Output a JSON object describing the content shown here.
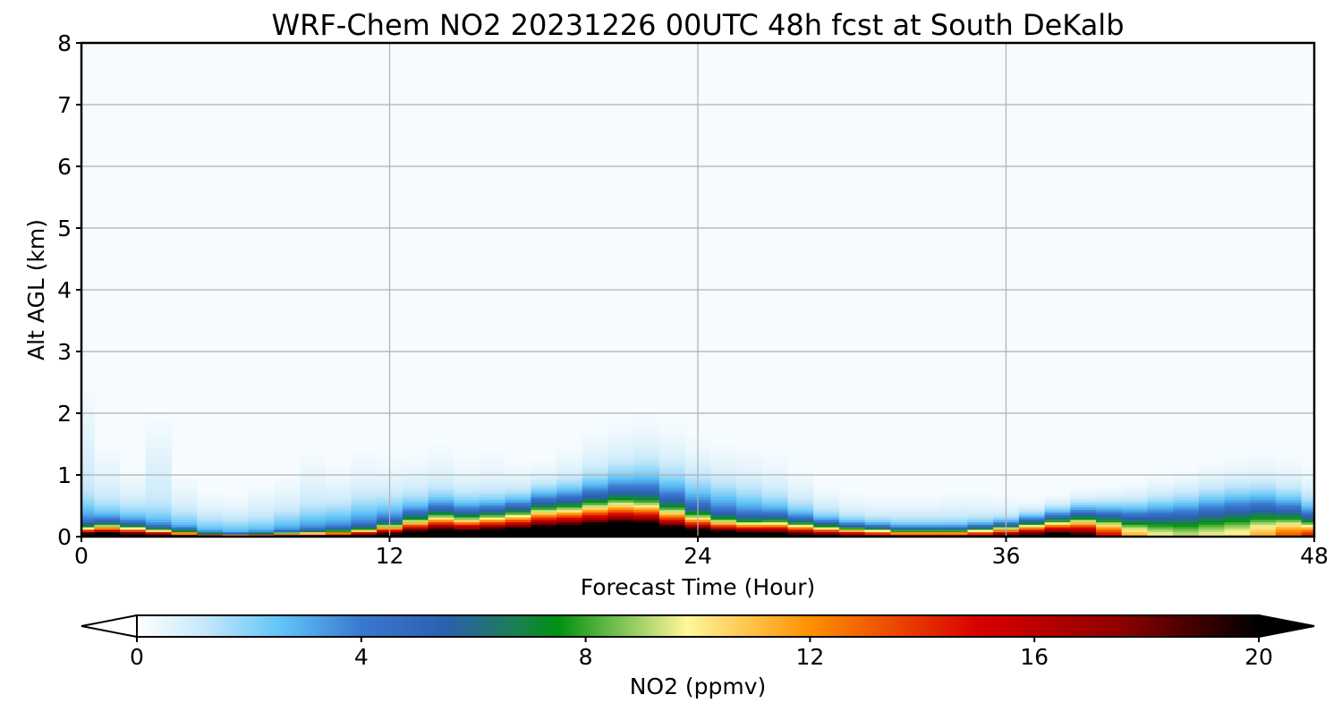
{
  "chart_data": {
    "type": "heatmap",
    "subtype": "time-height filled contour",
    "title": "WRF-Chem NO2  20231226 00UTC 48h fcst at South DeKalb",
    "xlabel": "Forecast Time (Hour)",
    "ylabel": "Alt AGL (km)",
    "xlim": [
      0,
      48
    ],
    "ylim": [
      0,
      8
    ],
    "xticks": [
      0,
      12,
      24,
      36,
      48
    ],
    "yticks": [
      0,
      1,
      2,
      3,
      4,
      5,
      6,
      7,
      8
    ],
    "grid": true,
    "colorbar": {
      "label": "NO2  (ppmv)",
      "min": 0,
      "max": 20,
      "ticks": [
        0,
        4,
        8,
        12,
        16,
        20
      ],
      "extend": "both",
      "orientation": "horizontal",
      "colors": [
        {
          "v": 0,
          "c": "#ffffff"
        },
        {
          "v": 1.2,
          "c": "#c6e8fa"
        },
        {
          "v": 2.6,
          "c": "#5ec3f7"
        },
        {
          "v": 4.0,
          "c": "#3a78d0"
        },
        {
          "v": 5.5,
          "c": "#2b5fb0"
        },
        {
          "v": 6.8,
          "c": "#1a8050"
        },
        {
          "v": 7.5,
          "c": "#009010"
        },
        {
          "v": 9.8,
          "c": "#fff79a"
        },
        {
          "v": 12.0,
          "c": "#ff9000"
        },
        {
          "v": 15.0,
          "c": "#d80000"
        },
        {
          "v": 17.5,
          "c": "#900000"
        },
        {
          "v": 20.0,
          "c": "#000000"
        }
      ]
    },
    "hours": [
      0,
      1,
      2,
      3,
      4,
      5,
      6,
      7,
      8,
      9,
      10,
      11,
      12,
      13,
      14,
      15,
      16,
      17,
      18,
      19,
      20,
      21,
      22,
      23,
      24,
      25,
      26,
      27,
      28,
      29,
      30,
      31,
      32,
      33,
      34,
      35,
      36,
      37,
      38,
      39,
      40,
      41,
      42,
      43,
      44,
      45,
      46,
      47,
      48
    ],
    "surface_no2": [
      20,
      20,
      19,
      18,
      16,
      14,
      13,
      13,
      14,
      15,
      16,
      17,
      18,
      19,
      19,
      19,
      20,
      20,
      20,
      20,
      20,
      20,
      20,
      19,
      19,
      19,
      19,
      18,
      17,
      17,
      16,
      15,
      14,
      14,
      14,
      15,
      17,
      18,
      19,
      17,
      12,
      8,
      6,
      5,
      5,
      5,
      6,
      8,
      10
    ],
    "boundary_layer_depth_km": [
      0.85,
      0.75,
      0.7,
      0.65,
      0.55,
      0.45,
      0.42,
      0.45,
      0.55,
      0.65,
      0.7,
      0.8,
      0.85,
      0.9,
      0.95,
      0.9,
      0.85,
      0.85,
      0.95,
      1.0,
      1.2,
      1.35,
      1.45,
      1.35,
      1.2,
      1.1,
      1.0,
      0.9,
      0.75,
      0.6,
      0.5,
      0.45,
      0.45,
      0.45,
      0.45,
      0.45,
      0.4,
      0.4,
      0.4,
      0.45,
      0.5,
      0.55,
      0.65,
      0.75,
      0.85,
      0.95,
      1.0,
      0.95,
      0.85
    ],
    "high_layer_depth_km": [
      0.12,
      0.15,
      0.13,
      0.1,
      0.08,
      0.05,
      0.04,
      0.05,
      0.06,
      0.07,
      0.08,
      0.1,
      0.15,
      0.22,
      0.28,
      0.25,
      0.28,
      0.32,
      0.38,
      0.4,
      0.42,
      0.44,
      0.4,
      0.32,
      0.25,
      0.2,
      0.18,
      0.2,
      0.18,
      0.15,
      0.13,
      0.12,
      0.1,
      0.1,
      0.1,
      0.12,
      0.15,
      0.2,
      0.25,
      0.3,
      0.32,
      0.35,
      0.4,
      0.42,
      0.45,
      0.45,
      0.42,
      0.35,
      0.25
    ],
    "faint_layer_depth_km": [
      2.0,
      1.2,
      0.9,
      1.6,
      0.8,
      0.6,
      0.55,
      0.7,
      0.8,
      1.1,
      0.95,
      1.15,
      1.05,
      1.1,
      1.25,
      1.05,
      1.15,
      1.0,
      1.0,
      1.2,
      1.45,
      1.55,
      1.6,
      1.5,
      1.35,
      1.25,
      1.2,
      1.1,
      0.9,
      0.7,
      0.6,
      0.55,
      0.55,
      0.55,
      0.6,
      0.6,
      0.55,
      0.5,
      0.5,
      0.55,
      0.6,
      0.65,
      0.75,
      0.85,
      0.95,
      1.05,
      1.1,
      1.05,
      0.95
    ]
  }
}
